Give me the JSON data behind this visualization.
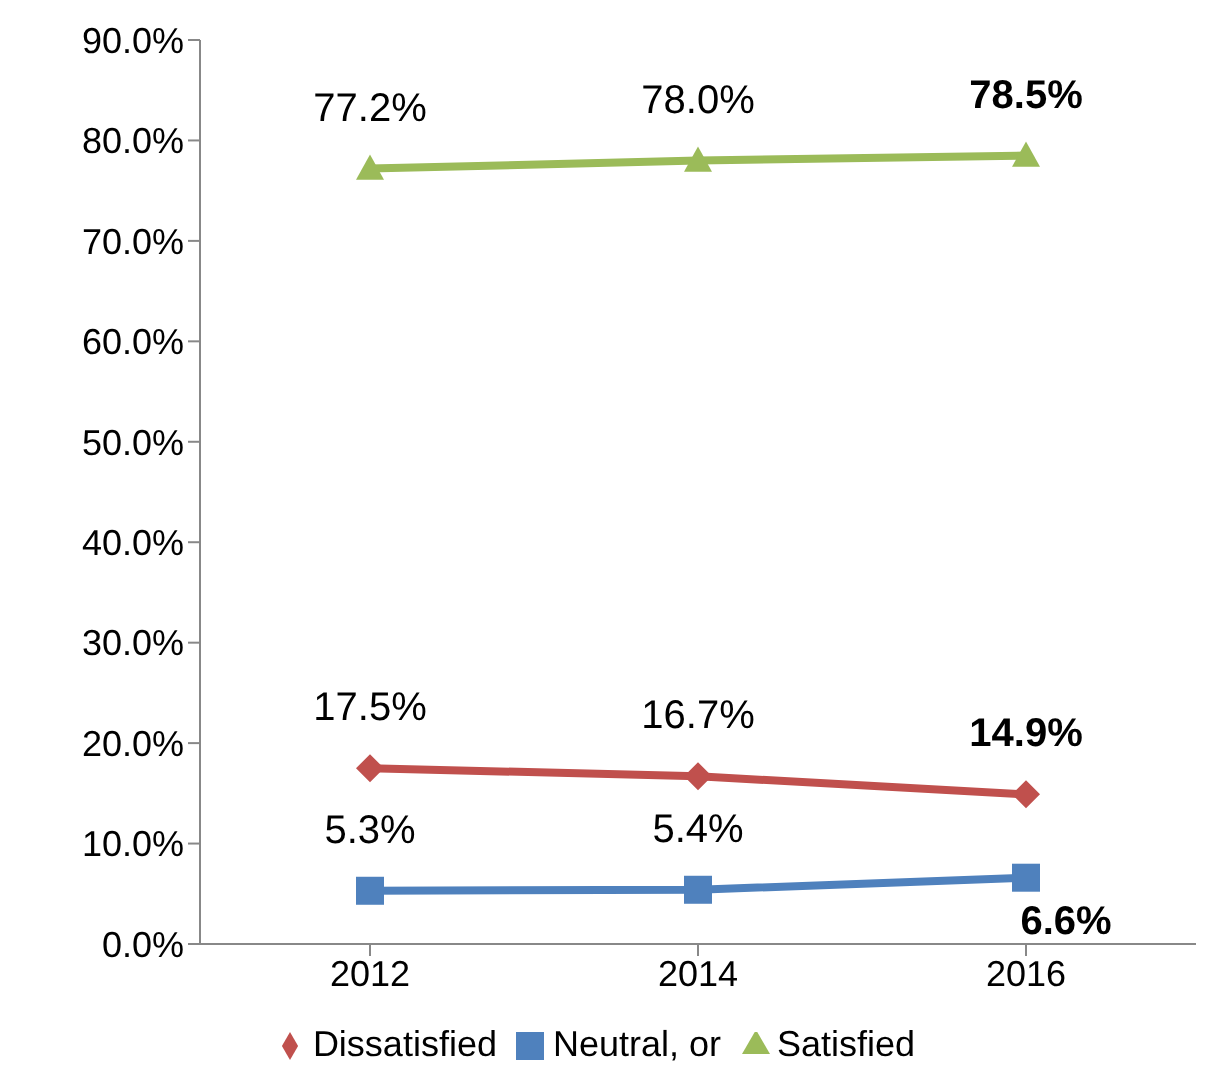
{
  "chart_data": {
    "type": "line",
    "categories": [
      "2012",
      "2014",
      "2016"
    ],
    "series": [
      {
        "name": "Dissatisfied",
        "color": "#c0504d",
        "marker": "diamond",
        "values": [
          17.5,
          16.7,
          14.9
        ],
        "value_labels": [
          "17.5%",
          "16.7%",
          "14.9%"
        ]
      },
      {
        "name": "Neutral, or",
        "color": "#4f81bd",
        "marker": "square",
        "values": [
          5.3,
          5.4,
          6.6
        ],
        "value_labels": [
          "5.3%",
          "5.4%",
          "6.6%"
        ]
      },
      {
        "name": "Satisfied",
        "color": "#9bbb59",
        "marker": "triangle",
        "values": [
          77.2,
          78.0,
          78.5
        ],
        "value_labels": [
          "77.2%",
          "78.0%",
          "78.5%"
        ]
      }
    ],
    "ylim": [
      0,
      90
    ],
    "yticks": [
      {
        "value": 0,
        "label": "0.0%"
      },
      {
        "value": 10,
        "label": "10.0%"
      },
      {
        "value": 20,
        "label": "20.0%"
      },
      {
        "value": 30,
        "label": "30.0%"
      },
      {
        "value": 40,
        "label": "40.0%"
      },
      {
        "value": 50,
        "label": "50.0%"
      },
      {
        "value": 60,
        "label": "60.0%"
      },
      {
        "value": 70,
        "label": "70.0%"
      },
      {
        "value": 80,
        "label": "80.0%"
      },
      {
        "value": 90,
        "label": "90.0%"
      }
    ],
    "legend": "bottom"
  }
}
